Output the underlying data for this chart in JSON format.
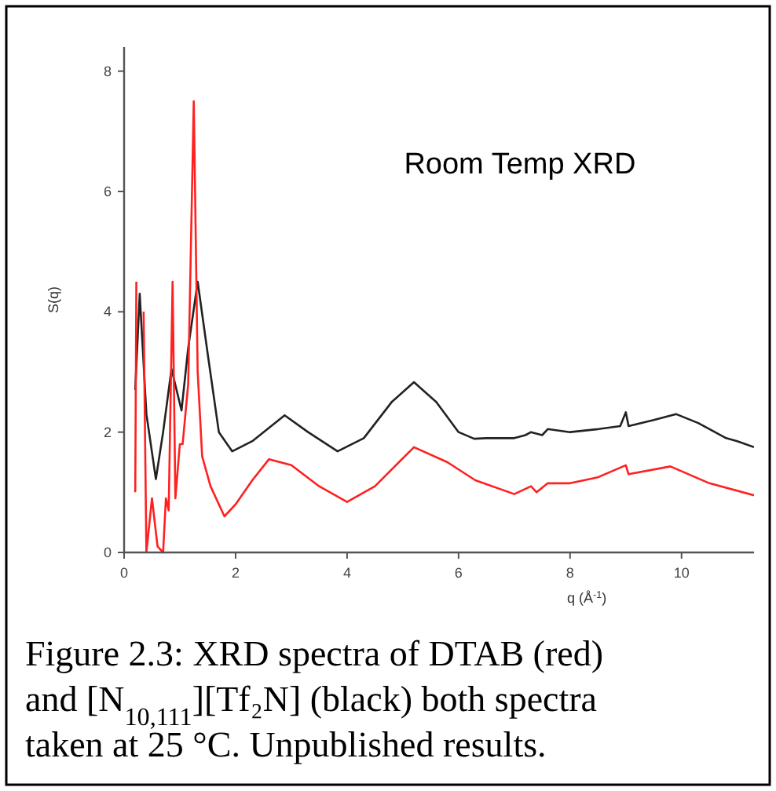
{
  "chart_data": {
    "type": "line",
    "xlabel": "q (Å$^{-1}$)",
    "ylabel": "S(q)",
    "xlim": [
      0,
      11.3
    ],
    "ylim": [
      0,
      8.4
    ],
    "xticks": [
      0,
      2,
      4,
      6,
      8,
      10
    ],
    "yticks": [
      0,
      2,
      4,
      6,
      8
    ],
    "grid": false,
    "marker": "none",
    "line_style": "solid",
    "title": "Room Temp XRD",
    "annotations": [
      "Figure 2.3: XRD spectra of DTAB (red) and [N$_{10,111}$][Tf₂N] (black) both spectra taken at 25 °C. Unpublished results."
    ],
    "series": [
      {
        "color": "#222222",
        "x": [
          0.2,
          0.28,
          0.4,
          0.57,
          0.7,
          0.85,
          1.03,
          1.15,
          1.32,
          1.5,
          1.7,
          1.94,
          2.3,
          2.88,
          3.3,
          3.83,
          4.3,
          4.8,
          5.2,
          5.6,
          6.0,
          6.28,
          6.5,
          7.0,
          7.2,
          7.3,
          7.5,
          7.6,
          8.0,
          8.5,
          8.9,
          9.0,
          9.05,
          9.5,
          9.9,
          10.3,
          10.8,
          11.0,
          11.3
        ],
        "values": [
          2.7,
          4.3,
          2.3,
          1.22,
          2.0,
          3.05,
          2.36,
          3.4,
          4.5,
          3.3,
          2.0,
          1.68,
          1.85,
          2.28,
          2.0,
          1.68,
          1.9,
          2.5,
          2.83,
          2.5,
          2.0,
          1.89,
          1.9,
          1.9,
          1.95,
          2.0,
          1.95,
          2.05,
          2.0,
          2.05,
          2.1,
          2.33,
          2.1,
          2.2,
          2.3,
          2.15,
          1.9,
          1.85,
          1.75
        ]
      },
      {
        "color": "#ff2020",
        "x": [
          0.2,
          0.22,
          0.25,
          0.3,
          0.35,
          0.4,
          0.5,
          0.6,
          0.7,
          0.75,
          0.8,
          0.87,
          0.92,
          1.0,
          1.05,
          1.15,
          1.25,
          1.32,
          1.4,
          1.55,
          1.8,
          2.0,
          2.3,
          2.6,
          3.0,
          3.5,
          4.0,
          4.5,
          5.2,
          5.8,
          6.3,
          7.0,
          7.3,
          7.4,
          7.6,
          8.0,
          8.5,
          9.0,
          9.05,
          9.8,
          10.5,
          11.3
        ],
        "values": [
          1.0,
          4.5,
          null,
          null,
          4.0,
          0.0,
          0.9,
          0.1,
          0.0,
          0.9,
          0.7,
          4.5,
          0.9,
          1.8,
          1.8,
          2.8,
          7.5,
          3.0,
          1.6,
          1.1,
          0.6,
          0.8,
          1.2,
          1.55,
          1.45,
          1.1,
          0.84,
          1.1,
          1.75,
          1.5,
          1.2,
          0.97,
          1.1,
          1.0,
          1.15,
          1.15,
          1.25,
          1.45,
          1.3,
          1.43,
          1.15,
          0.95
        ]
      }
    ]
  }
}
